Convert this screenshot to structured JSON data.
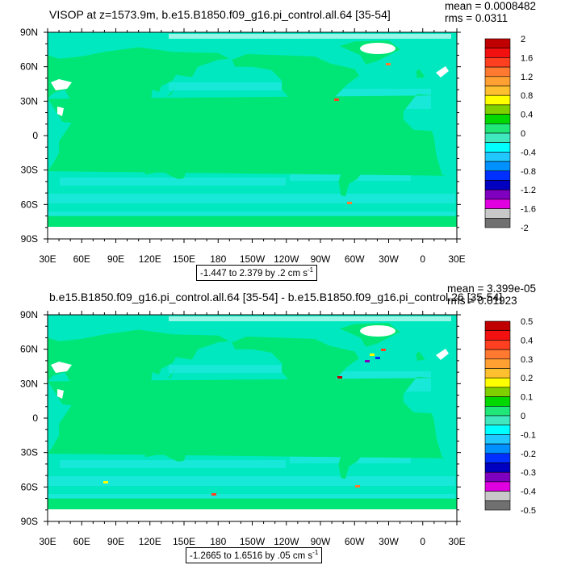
{
  "panels": [
    {
      "title": "VISOP at z=1573.9m, b.e15.B1850.f09_g16.pi_control.all.64 [35-54]",
      "mean": "mean = 0.0008482",
      "rms": "rms = 0.0311",
      "range_text": "-1.447 to 2.379 by .2 cm s",
      "range_sup": "-1",
      "colorbar_labels": [
        "2",
        "1.6",
        "1.2",
        "0.8",
        "0.4",
        "0",
        "-0.4",
        "-0.8",
        "-1.2",
        "-1.6",
        "-2"
      ]
    },
    {
      "title": "b.e15.B1850.f09_g16.pi_control.all.64 [35-54] - b.e15.B1850.f09_g16.pi_control.26 [35-54]",
      "mean": "mean = 3.399e-05",
      "rms": "rms = 0.01923",
      "range_text": "-1.2665 to 1.6516 by .05 cm s",
      "range_sup": "-1",
      "colorbar_labels": [
        "0.5",
        "0.4",
        "0.3",
        "0.2",
        "0.1",
        "0",
        "-0.1",
        "-0.2",
        "-0.3",
        "-0.4",
        "-0.5"
      ]
    }
  ],
  "axes": {
    "lat_labels": [
      "90N",
      "60N",
      "30N",
      "0",
      "30S",
      "60S",
      "90S"
    ],
    "lon_labels": [
      "30E",
      "60E",
      "90E",
      "120E",
      "150E",
      "180",
      "150W",
      "120W",
      "90W",
      "60W",
      "30W",
      "0",
      "30E"
    ]
  },
  "colorbar_colors": [
    "#c00000",
    "#f21010",
    "#ff4020",
    "#ff7a30",
    "#ffa032",
    "#ffc030",
    "#ffff00",
    "#80d000",
    "#00d800",
    "#20e878",
    "#40e8c0",
    "#00ffff",
    "#20c8ff",
    "#0090ff",
    "#0030ff",
    "#0000c0",
    "#8000c0",
    "#e000e0",
    "#c8c8c8",
    "#707070"
  ],
  "chart_data": [
    {
      "type": "heatmap",
      "title": "VISOP at z=1573.9m, b.e15.B1850.f09_g16.pi_control.all.64 [35-54]",
      "x_ticks": [
        "30E",
        "60E",
        "90E",
        "120E",
        "150E",
        "180",
        "150W",
        "120W",
        "90W",
        "60W",
        "30W",
        "0",
        "30E"
      ],
      "y_ticks": [
        "90N",
        "60N",
        "30N",
        "0",
        "30S",
        "60S",
        "90S"
      ],
      "colorbar": [
        -2,
        2
      ],
      "contour_levels": [
        -2,
        -1.8,
        -1.6,
        -1.4,
        -1.2,
        -1.0,
        -0.8,
        -0.6,
        -0.4,
        -0.2,
        0,
        0.2,
        0.4,
        0.6,
        0.8,
        1.0,
        1.2,
        1.4,
        1.6,
        1.8,
        2.0
      ],
      "mean": 0.0008482,
      "rms": 0.0311,
      "min": -1.447,
      "max": 2.379,
      "units": "cm s-1"
    },
    {
      "type": "heatmap",
      "title": "b.e15.B1850.f09_g16.pi_control.all.64 [35-54] - b.e15.B1850.f09_g16.pi_control.26 [35-54]",
      "x_ticks": [
        "30E",
        "60E",
        "90E",
        "120E",
        "150E",
        "180",
        "150W",
        "120W",
        "90W",
        "60W",
        "30W",
        "0",
        "30E"
      ],
      "y_ticks": [
        "90N",
        "60N",
        "30N",
        "0",
        "30S",
        "60S",
        "90S"
      ],
      "colorbar": [
        -0.5,
        0.5
      ],
      "contour_levels": [
        -0.5,
        -0.45,
        -0.4,
        -0.35,
        -0.3,
        -0.25,
        -0.2,
        -0.15,
        -0.1,
        -0.05,
        0,
        0.05,
        0.1,
        0.15,
        0.2,
        0.25,
        0.3,
        0.35,
        0.4,
        0.45,
        0.5
      ],
      "mean": 3.399e-05,
      "rms": 0.01923,
      "min": -1.2665,
      "max": 1.6516,
      "units": "cm s-1"
    }
  ]
}
